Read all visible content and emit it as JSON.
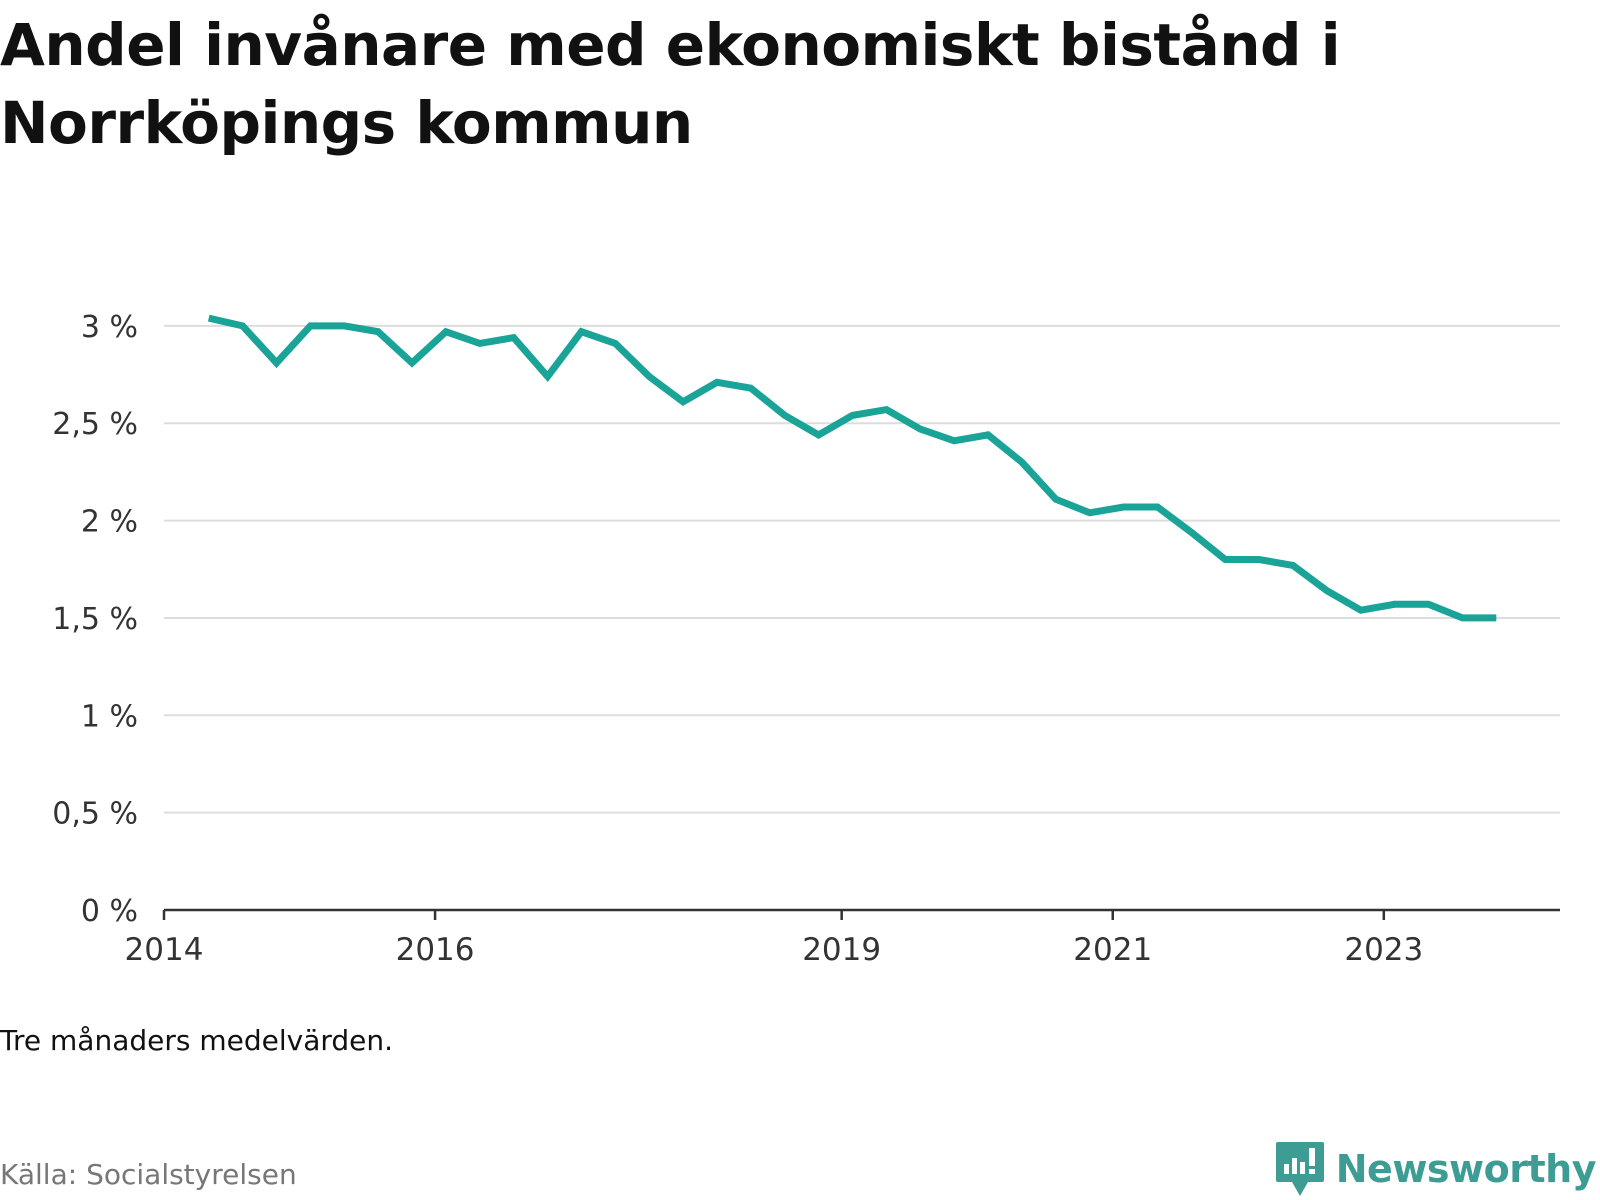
{
  "chart_data": {
    "type": "line",
    "title": "Andel invånare med ekonomiskt bistånd i Norrköpings kommun",
    "note": "Tre månaders medelvärden.",
    "source": "Källa: Socialstyrelsen",
    "brand": "Newsworthy",
    "y_ticks": [
      "0 %",
      "0,5 %",
      "1 %",
      "1,5 %",
      "2 %",
      "2,5 %",
      "3 %"
    ],
    "x_ticks": [
      {
        "label": "2014",
        "value": 2014.0
      },
      {
        "label": "2016",
        "value": 2016.0
      },
      {
        "label": "2019",
        "value": 2019.0
      },
      {
        "label": "2021",
        "value": 2021.0
      },
      {
        "label": "2023",
        "value": 2023.0
      }
    ],
    "xlim": [
      2014.0,
      2024.3
    ],
    "ylim": [
      0,
      3.4
    ],
    "grid": true,
    "color": "#1aa397",
    "series": [
      {
        "name": "",
        "x": [
          2014.33,
          2014.58,
          2014.83,
          2015.08,
          2015.33,
          2015.58,
          2015.83,
          2016.08,
          2016.33,
          2016.58,
          2016.83,
          2017.08,
          2017.33,
          2017.58,
          2017.83,
          2018.08,
          2018.33,
          2018.58,
          2018.83,
          2019.08,
          2019.33,
          2019.58,
          2019.83,
          2020.08,
          2020.33,
          2020.58,
          2020.83,
          2021.08,
          2021.33,
          2021.58,
          2021.83,
          2022.08,
          2022.33,
          2022.58,
          2022.83,
          2023.08,
          2023.33,
          2023.58,
          2023.83
        ],
        "y": [
          3.04,
          3.0,
          2.81,
          3.0,
          3.0,
          2.97,
          2.81,
          2.97,
          2.91,
          2.94,
          2.74,
          2.97,
          2.91,
          2.74,
          2.61,
          2.71,
          2.68,
          2.54,
          2.44,
          2.54,
          2.57,
          2.47,
          2.41,
          2.44,
          2.3,
          2.11,
          2.04,
          2.07,
          2.07,
          1.94,
          1.8,
          1.8,
          1.77,
          1.64,
          1.54,
          1.57,
          1.57,
          1.5,
          1.5
        ]
      }
    ]
  }
}
